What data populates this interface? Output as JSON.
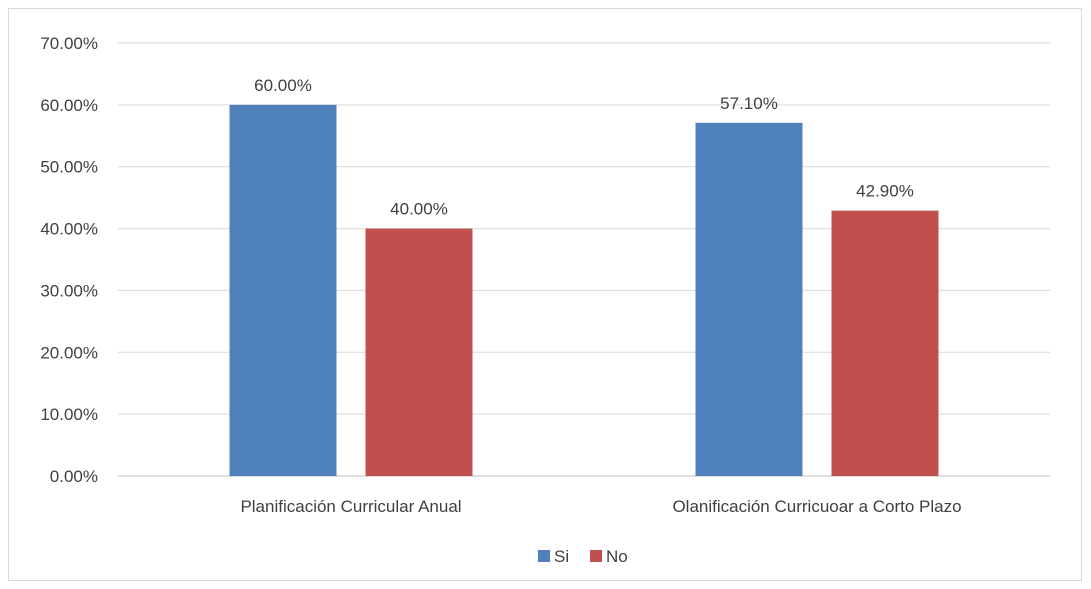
{
  "chart_data": {
    "type": "bar",
    "categories": [
      "Planificación Curricular Anual",
      "Olanificación Curricuoar a Corto Plazo"
    ],
    "series": [
      {
        "name": "Si",
        "values": [
          60.0,
          57.1
        ],
        "labels": [
          "60.00%",
          "57.10%"
        ],
        "color": "#4f81bd"
      },
      {
        "name": "No",
        "values": [
          40.0,
          42.9
        ],
        "labels": [
          "40.00%",
          "42.90%"
        ],
        "color": "#c0504d"
      }
    ],
    "yticks": [
      "0.00%",
      "10.00%",
      "20.00%",
      "30.00%",
      "40.00%",
      "50.00%",
      "60.00%",
      "70.00%"
    ],
    "ylim": [
      0,
      70
    ],
    "grid": true,
    "legend_position": "bottom",
    "title": "",
    "xlabel": "",
    "ylabel": "",
    "colors": {
      "grid": "#d9d9d9",
      "axis": "#bfbfbf",
      "text": "#404040"
    }
  }
}
